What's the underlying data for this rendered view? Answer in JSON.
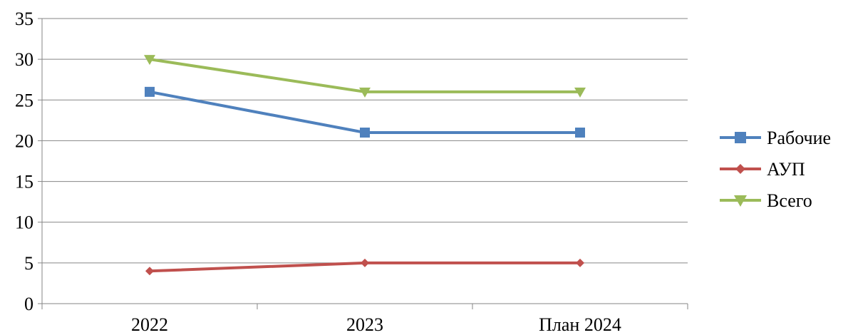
{
  "chart_data": {
    "type": "line",
    "title": "",
    "xlabel": "",
    "ylabel": "",
    "categories": [
      "2022",
      "2023",
      "План 2024"
    ],
    "ylim": [
      0,
      35
    ],
    "ytick_step": 5,
    "grid": true,
    "legend_position": "right",
    "series": [
      {
        "name": "Рабочие",
        "values": [
          26,
          21,
          21
        ],
        "color": "#4F81BD",
        "marker": "square"
      },
      {
        "name": "АУП",
        "values": [
          4,
          5,
          5
        ],
        "color": "#C0504D",
        "marker": "diamond"
      },
      {
        "name": "Всего",
        "values": [
          30,
          26,
          26
        ],
        "color": "#9BBB59",
        "marker": "triangle-down"
      }
    ]
  }
}
